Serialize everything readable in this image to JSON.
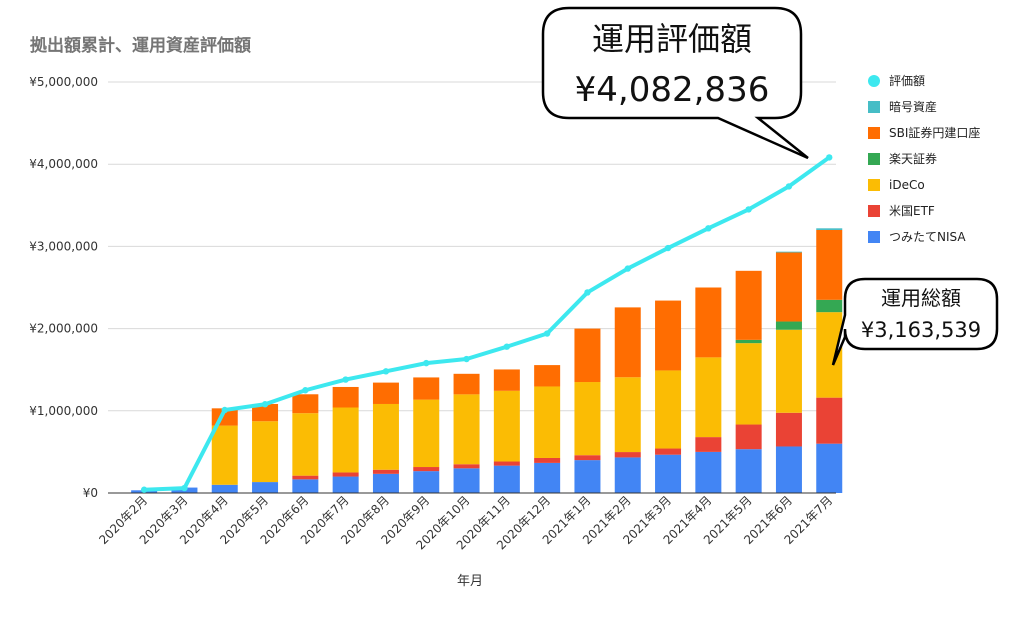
{
  "chart_data": {
    "type": "bar",
    "title": "拠出額累計、運用資産評価額",
    "xlabel": "年月",
    "ylabel": "",
    "ylim": [
      0,
      5000000
    ],
    "yticks": [
      "¥0",
      "¥1,000,000",
      "¥2,000,000",
      "¥3,000,000",
      "¥4,000,000",
      "¥5,000,000"
    ],
    "grid": true,
    "legend_position": "right",
    "categories": [
      "2020年2月",
      "2020年3月",
      "2020年4月",
      "2020年5月",
      "2020年6月",
      "2020年7月",
      "2020年8月",
      "2020年9月",
      "2020年10月",
      "2020年11月",
      "2020年12月",
      "2021年1月",
      "2021年2月",
      "2021年3月",
      "2021年4月",
      "2021年5月",
      "2021年6月",
      "2021年7月"
    ],
    "series": [
      {
        "name": "つみたてNISA",
        "kind": "bar",
        "color": "#4285f4",
        "values": [
          33000,
          66000,
          100000,
          133000,
          166000,
          200000,
          233000,
          266000,
          300000,
          333000,
          366000,
          400000,
          433000,
          466000,
          500000,
          533000,
          566000,
          600000
        ]
      },
      {
        "name": "米国ETF",
        "kind": "bar",
        "color": "#ea4335",
        "values": [
          0,
          0,
          0,
          0,
          45000,
          50000,
          50000,
          50000,
          50000,
          50000,
          60000,
          60000,
          65000,
          75000,
          180000,
          300000,
          410000,
          560000
        ]
      },
      {
        "name": "iDeCo",
        "kind": "bar",
        "color": "#fbbc04",
        "values": [
          0,
          0,
          720000,
          740000,
          760000,
          790000,
          800000,
          820000,
          850000,
          860000,
          870000,
          890000,
          910000,
          950000,
          970000,
          990000,
          1010000,
          1040000
        ]
      },
      {
        "name": "楽天証券",
        "kind": "bar",
        "color": "#34a853",
        "values": [
          0,
          0,
          0,
          0,
          0,
          0,
          0,
          0,
          0,
          0,
          0,
          0,
          0,
          0,
          0,
          40000,
          100000,
          150000
        ]
      },
      {
        "name": "SBI証券円建口座",
        "kind": "bar",
        "color": "#ff6d01",
        "values": [
          0,
          0,
          210000,
          210000,
          230000,
          250000,
          260000,
          270000,
          250000,
          260000,
          260000,
          650000,
          850000,
          850000,
          850000,
          840000,
          840000,
          850000
        ]
      },
      {
        "name": "暗号資産",
        "kind": "bar",
        "color": "#46bdc6",
        "values": [
          0,
          0,
          0,
          0,
          0,
          0,
          0,
          0,
          0,
          0,
          0,
          0,
          0,
          0,
          0,
          0,
          10000,
          20000
        ]
      },
      {
        "name": "評価額",
        "kind": "line",
        "color": "#3de8ef",
        "values": [
          40000,
          60000,
          1010000,
          1080000,
          1250000,
          1380000,
          1480000,
          1580000,
          1630000,
          1780000,
          1940000,
          2440000,
          2730000,
          2980000,
          3220000,
          3450000,
          3730000,
          4082836
        ]
      }
    ],
    "callouts": [
      {
        "title": "運用評価額",
        "value": "¥4,082,836"
      },
      {
        "title": "運用総額",
        "value": "¥3,163,539"
      }
    ]
  }
}
